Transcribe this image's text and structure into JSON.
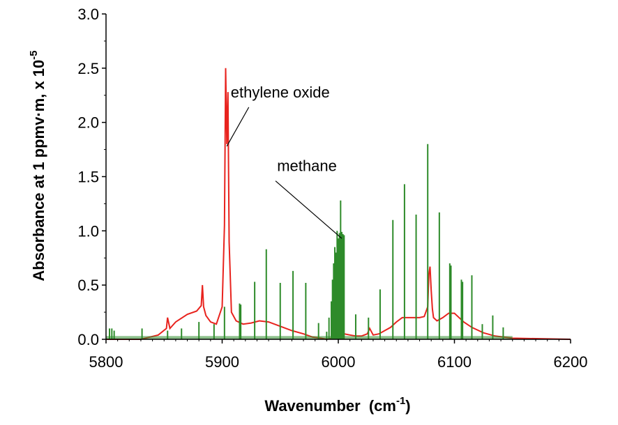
{
  "chart_data": {
    "type": "line",
    "title": "",
    "xlabel": "Wavenumber",
    "xlabel_unit_prefix": "(cm",
    "xlabel_unit_exp": "-1",
    "xlabel_unit_suffix": ")",
    "ylabel": "Absorbance at 1 ppmv·m, x 10",
    "ylabel_exp": "-5",
    "xlim": [
      5800,
      6200
    ],
    "ylim": [
      0,
      3.0
    ],
    "xticks": [
      5800,
      5900,
      6000,
      6100,
      6200
    ],
    "xtick_labels": [
      "5800",
      "5900",
      "6000",
      "6100",
      "6200"
    ],
    "yticks": [
      0,
      0.5,
      1.0,
      1.5,
      2.0,
      2.5,
      3.0
    ],
    "ytick_labels": [
      "0.0",
      "0.5",
      "1.0",
      "1.5",
      "2.0",
      "2.5",
      "3.0"
    ],
    "grid": false,
    "series": [
      {
        "name": "ethylene oxide",
        "color": "#e8231e",
        "style": "line",
        "x": [
          5800,
          5830,
          5845,
          5852,
          5853,
          5855,
          5860,
          5870,
          5878,
          5882,
          5883,
          5884,
          5886,
          5890,
          5895,
          5900,
          5902,
          5903,
          5904,
          5905,
          5906,
          5908,
          5912,
          5918,
          5925,
          5932,
          5940,
          5950,
          5960,
          5970,
          5978,
          5985,
          5990,
          5995,
          6000,
          6005,
          6010,
          6015,
          6020,
          6025,
          6027,
          6030,
          6035,
          6040,
          6045,
          6050,
          6055,
          6060,
          6065,
          6070,
          6074,
          6077,
          6078,
          6079,
          6080,
          6081,
          6082,
          6085,
          6090,
          6095,
          6100,
          6103,
          6108,
          6115,
          6125,
          6135,
          6150,
          6200
        ],
        "y": [
          0.0,
          0.0,
          0.04,
          0.1,
          0.2,
          0.1,
          0.16,
          0.23,
          0.26,
          0.31,
          0.5,
          0.3,
          0.22,
          0.16,
          0.14,
          0.3,
          1.05,
          2.5,
          1.8,
          2.28,
          0.9,
          0.25,
          0.17,
          0.14,
          0.15,
          0.17,
          0.16,
          0.12,
          0.08,
          0.05,
          0.02,
          0.01,
          0.0,
          0.01,
          0.04,
          0.05,
          0.04,
          0.03,
          0.03,
          0.05,
          0.1,
          0.04,
          0.05,
          0.08,
          0.11,
          0.16,
          0.2,
          0.2,
          0.2,
          0.2,
          0.21,
          0.3,
          0.6,
          0.67,
          0.45,
          0.28,
          0.2,
          0.17,
          0.2,
          0.24,
          0.24,
          0.21,
          0.16,
          0.11,
          0.06,
          0.03,
          0.01,
          0.0
        ]
      },
      {
        "name": "methane",
        "color": "#2e8b2a",
        "style": "stick",
        "x": [
          5803,
          5805,
          5807,
          5831,
          5853,
          5865,
          5880,
          5893,
          5902,
          5915,
          5916,
          5928,
          5938,
          5950,
          5961,
          5972,
          5983,
          5990,
          5992,
          5994,
          5995,
          5996,
          5997,
          5998,
          5999,
          6000,
          6001,
          6002,
          6003,
          6004,
          6005,
          6015,
          6026,
          6036,
          6047,
          6057,
          6067,
          6077,
          6087,
          6096,
          6097,
          6106,
          6107,
          6115,
          6124,
          6133,
          6142
        ],
        "y": [
          0.1,
          0.1,
          0.08,
          0.1,
          0.08,
          0.1,
          0.16,
          0.14,
          0.3,
          0.33,
          0.32,
          0.53,
          0.83,
          0.52,
          0.63,
          0.52,
          0.15,
          0.07,
          0.2,
          0.35,
          0.55,
          0.7,
          0.85,
          0.8,
          1.0,
          0.93,
          0.98,
          1.28,
          0.99,
          0.97,
          0.96,
          0.23,
          0.2,
          0.46,
          1.1,
          1.43,
          1.15,
          1.8,
          1.17,
          0.7,
          0.68,
          0.55,
          0.53,
          0.59,
          0.14,
          0.22,
          0.11
        ]
      }
    ],
    "annotations": [
      {
        "text": "ethylene oxide",
        "x": 5950,
        "y": 2.23,
        "point_x": 5904,
        "point_y": 1.78
      },
      {
        "text": "methane",
        "x": 5973,
        "y": 1.55,
        "point_x": 6003,
        "point_y": 0.93
      }
    ]
  }
}
